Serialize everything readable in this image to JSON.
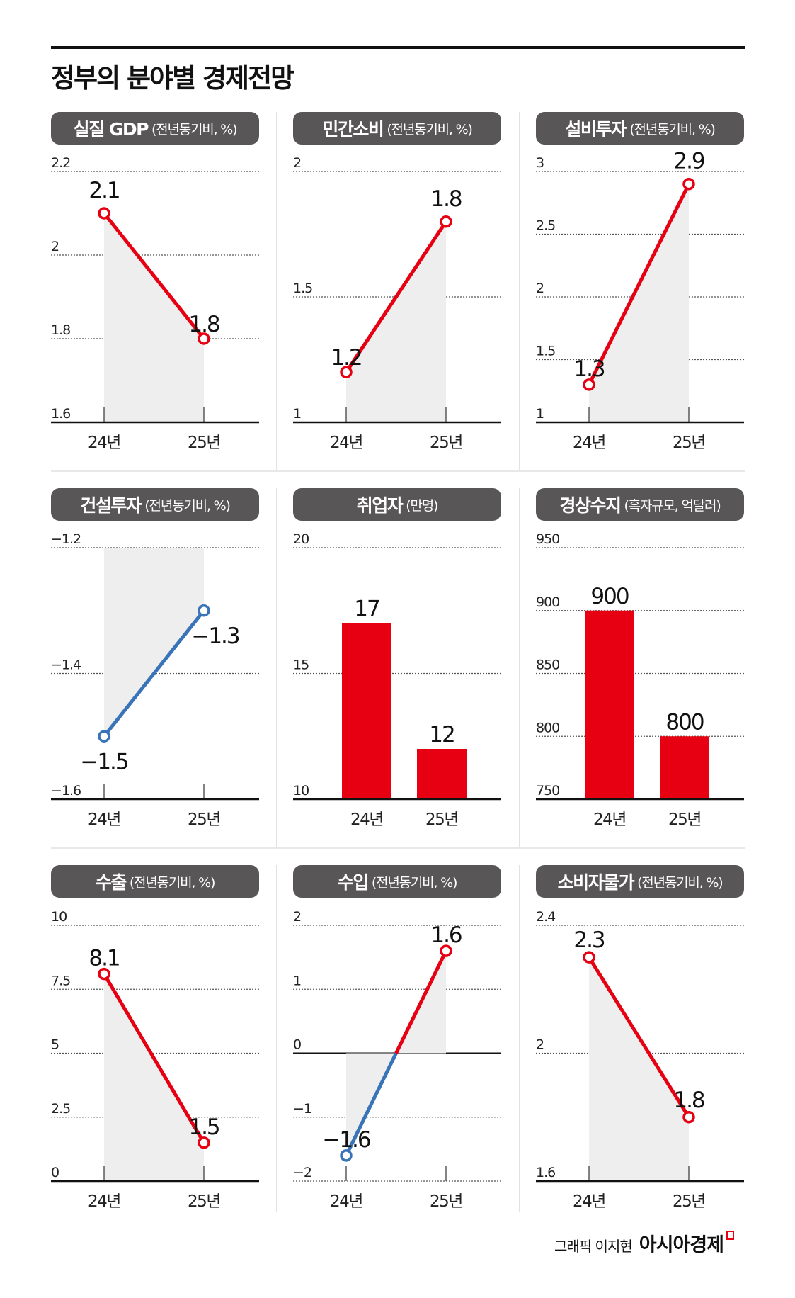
{
  "title": "정부의 분야별 경제전망",
  "colors": {
    "positive": "#e60012",
    "negative": "#3a74b8",
    "fill": "#eeeeee",
    "header": "#585656"
  },
  "credit": {
    "byline": "그래픽 이지현",
    "brand": "아시아경제"
  },
  "chart_data": [
    {
      "type": "line",
      "title": "실질 GDP",
      "unit": "(전년동기비, %)",
      "categories": [
        "24년",
        "25년"
      ],
      "values": [
        2.1,
        1.8
      ],
      "value_labels": [
        "2.1",
        "1.8"
      ],
      "ylim": [
        1.6,
        2.2
      ],
      "yticks": [
        1.6,
        1.8,
        2,
        2.2
      ],
      "ytick_labels": [
        "1.6",
        "1.8",
        "2",
        "2.2"
      ],
      "grid": true
    },
    {
      "type": "line",
      "title": "민간소비",
      "unit": "(전년동기비, %)",
      "categories": [
        "24년",
        "25년"
      ],
      "values": [
        1.2,
        1.8
      ],
      "value_labels": [
        "1.2",
        "1.8"
      ],
      "ylim": [
        1,
        2
      ],
      "yticks": [
        1,
        1.5,
        2
      ],
      "ytick_labels": [
        "1",
        "1.5",
        "2"
      ],
      "grid": true
    },
    {
      "type": "line",
      "title": "설비투자",
      "unit": "(전년동기비, %)",
      "categories": [
        "24년",
        "25년"
      ],
      "values": [
        1.3,
        2.9
      ],
      "value_labels": [
        "1.3",
        "2.9"
      ],
      "ylim": [
        1,
        3
      ],
      "yticks": [
        1,
        1.5,
        2,
        2.5,
        3
      ],
      "ytick_labels": [
        "1",
        "1.5",
        "2",
        "2.5",
        "3"
      ],
      "grid": true
    },
    {
      "type": "line",
      "title": "건설투자",
      "unit": "(전년동기비, %)",
      "categories": [
        "24년",
        "25년"
      ],
      "values": [
        -1.5,
        -1.3
      ],
      "value_labels": [
        "−1.5",
        "−1.3"
      ],
      "ylim": [
        -1.6,
        -1.2
      ],
      "yticks": [
        -1.6,
        -1.4,
        -1.2
      ],
      "ytick_labels": [
        "−1.6",
        "−1.4",
        "−1.2"
      ],
      "grid": true
    },
    {
      "type": "bar",
      "title": "취업자",
      "unit": "(만명)",
      "categories": [
        "24년",
        "25년"
      ],
      "values": [
        17,
        12
      ],
      "value_labels": [
        "17",
        "12"
      ],
      "ylim": [
        10,
        20
      ],
      "yticks": [
        10,
        15,
        20
      ],
      "ytick_labels": [
        "10",
        "15",
        "20"
      ],
      "grid": true
    },
    {
      "type": "bar",
      "title": "경상수지",
      "unit": "(흑자규모, 억달러)",
      "categories": [
        "24년",
        "25년"
      ],
      "values": [
        900,
        800
      ],
      "value_labels": [
        "900",
        "800"
      ],
      "ylim": [
        750,
        950
      ],
      "yticks": [
        750,
        800,
        850,
        900,
        950
      ],
      "ytick_labels": [
        "750",
        "800",
        "850",
        "900",
        "950"
      ],
      "grid": true
    },
    {
      "type": "line",
      "title": "수출",
      "unit": "(전년동기비, %)",
      "categories": [
        "24년",
        "25년"
      ],
      "values": [
        8.1,
        1.5
      ],
      "value_labels": [
        "8.1",
        "1.5"
      ],
      "ylim": [
        0,
        10
      ],
      "yticks": [
        0,
        2.5,
        5,
        7.5,
        10
      ],
      "ytick_labels": [
        "0",
        "2.5",
        "5",
        "7.5",
        "10"
      ],
      "grid": true
    },
    {
      "type": "line",
      "title": "수입",
      "unit": "(전년동기비, %)",
      "categories": [
        "24년",
        "25년"
      ],
      "values": [
        -1.6,
        1.6
      ],
      "value_labels": [
        "−1.6",
        "1.6"
      ],
      "ylim": [
        -2,
        2
      ],
      "yticks": [
        -2,
        -1,
        0,
        1,
        2
      ],
      "ytick_labels": [
        "−2",
        "−1",
        "0",
        "1",
        "2"
      ],
      "grid": true,
      "zero_line": true
    },
    {
      "type": "line",
      "title": "소비자물가",
      "unit": "(전년동기비, %)",
      "categories": [
        "24년",
        "25년"
      ],
      "values": [
        2.3,
        1.8
      ],
      "value_labels": [
        "2.3",
        "1.8"
      ],
      "ylim": [
        1.6,
        2.4
      ],
      "yticks": [
        1.6,
        2,
        2.4
      ],
      "ytick_labels": [
        "1.6",
        "2",
        "2.4"
      ],
      "grid": true
    }
  ]
}
